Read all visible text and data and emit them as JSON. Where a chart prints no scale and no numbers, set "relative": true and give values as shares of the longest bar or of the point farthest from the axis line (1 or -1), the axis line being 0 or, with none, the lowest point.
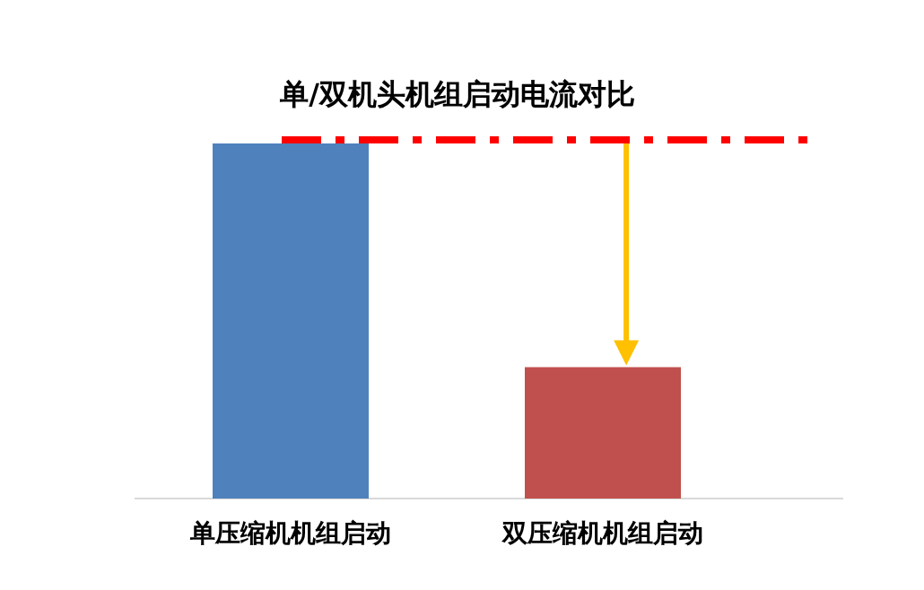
{
  "chart_data": {
    "type": "bar",
    "title": "单/双机头机组启动电流对比",
    "relative": true,
    "categories": [
      "单压缩机机组启动",
      "双压缩机机组启动"
    ],
    "values": [
      1,
      0.37
    ],
    "colors": [
      "#4f81bd",
      "#c0504d"
    ],
    "ref_lines": [
      {
        "axis": "y",
        "value": 1.01,
        "color": "#ff0000",
        "line_style": "dashdot"
      }
    ],
    "grid": false
  }
}
